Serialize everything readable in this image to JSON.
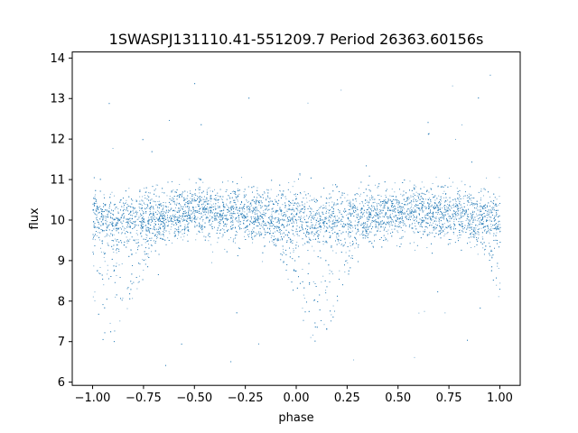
{
  "chart_data": {
    "type": "scatter",
    "title": "1SWASPJ131110.41-551209.7 Period 26363.60156s",
    "xlabel": "phase",
    "ylabel": "flux",
    "xlim": [
      -1.1,
      1.1
    ],
    "ylim": [
      5.92,
      14.15
    ],
    "xticks": [
      -1.0,
      -0.75,
      -0.5,
      -0.25,
      0.0,
      0.25,
      0.5,
      0.75,
      1.0
    ],
    "xtick_labels": [
      "−1.00",
      "−0.75",
      "−0.50",
      "−0.25",
      "0.00",
      "0.25",
      "0.50",
      "0.75",
      "1.00"
    ],
    "yticks": [
      6,
      7,
      8,
      9,
      10,
      11,
      12,
      13,
      14
    ],
    "ytick_labels": [
      "6",
      "7",
      "8",
      "9",
      "10",
      "11",
      "12",
      "13",
      "14"
    ],
    "grid": false,
    "legend": "none",
    "marker_color": "#1f77b4",
    "series": [
      {
        "phase_x": [
          -1.0,
          -0.98,
          -0.95,
          -0.92,
          -0.9,
          -0.88,
          -0.85,
          -0.82,
          -0.8,
          -0.78,
          -0.75,
          -0.72,
          -0.7,
          -0.68,
          -0.65,
          -0.62,
          -0.6,
          -0.55,
          -0.5,
          -0.45,
          -0.4,
          -0.35,
          -0.3,
          -0.25,
          -0.2,
          -0.15,
          -0.1,
          -0.05,
          0.0,
          0.02,
          0.05,
          0.08,
          0.1,
          0.12,
          0.15,
          0.18,
          0.2,
          0.22,
          0.25,
          0.28,
          0.3,
          0.32,
          0.35,
          0.38,
          0.4,
          0.45,
          0.5,
          0.55,
          0.6,
          0.65,
          0.7,
          0.75,
          0.8,
          0.85,
          0.9,
          0.95,
          0.98,
          1.0
        ],
        "flux_baseline": [
          10.15,
          10.1,
          10.05,
          10.0,
          9.95,
          9.95,
          10.0,
          10.0,
          10.05,
          10.05,
          10.05,
          10.1,
          10.1,
          10.1,
          10.1,
          10.1,
          10.15,
          10.15,
          10.2,
          10.2,
          10.2,
          10.15,
          10.15,
          10.15,
          10.1,
          10.1,
          10.05,
          10.05,
          10.1,
          10.05,
          10.0,
          9.95,
          9.95,
          9.95,
          10.0,
          10.0,
          10.05,
          10.05,
          10.05,
          10.1,
          10.1,
          10.1,
          10.1,
          10.1,
          10.1,
          10.15,
          10.15,
          10.2,
          10.2,
          10.2,
          10.15,
          10.15,
          10.15,
          10.1,
          10.1,
          10.1,
          10.1,
          10.15
        ],
        "dip_lower_envelope": [
          8.0,
          7.6,
          7.2,
          7.0,
          7.0,
          7.1,
          7.3,
          7.6,
          7.9,
          8.2,
          8.6,
          9.0,
          9.3,
          9.5,
          9.6,
          9.7,
          9.8,
          9.8,
          9.8,
          9.8,
          9.8,
          9.8,
          9.8,
          9.8,
          9.8,
          9.7,
          9.3,
          8.6,
          8.0,
          7.6,
          7.2,
          7.0,
          7.0,
          7.1,
          7.3,
          7.6,
          7.9,
          8.2,
          8.6,
          9.0,
          9.3,
          9.5,
          9.6,
          9.7,
          9.8,
          9.8,
          9.8,
          9.8,
          9.8,
          9.8,
          9.8,
          9.8,
          9.8,
          9.7,
          9.4,
          8.8,
          8.3,
          8.0
        ]
      }
    ]
  }
}
